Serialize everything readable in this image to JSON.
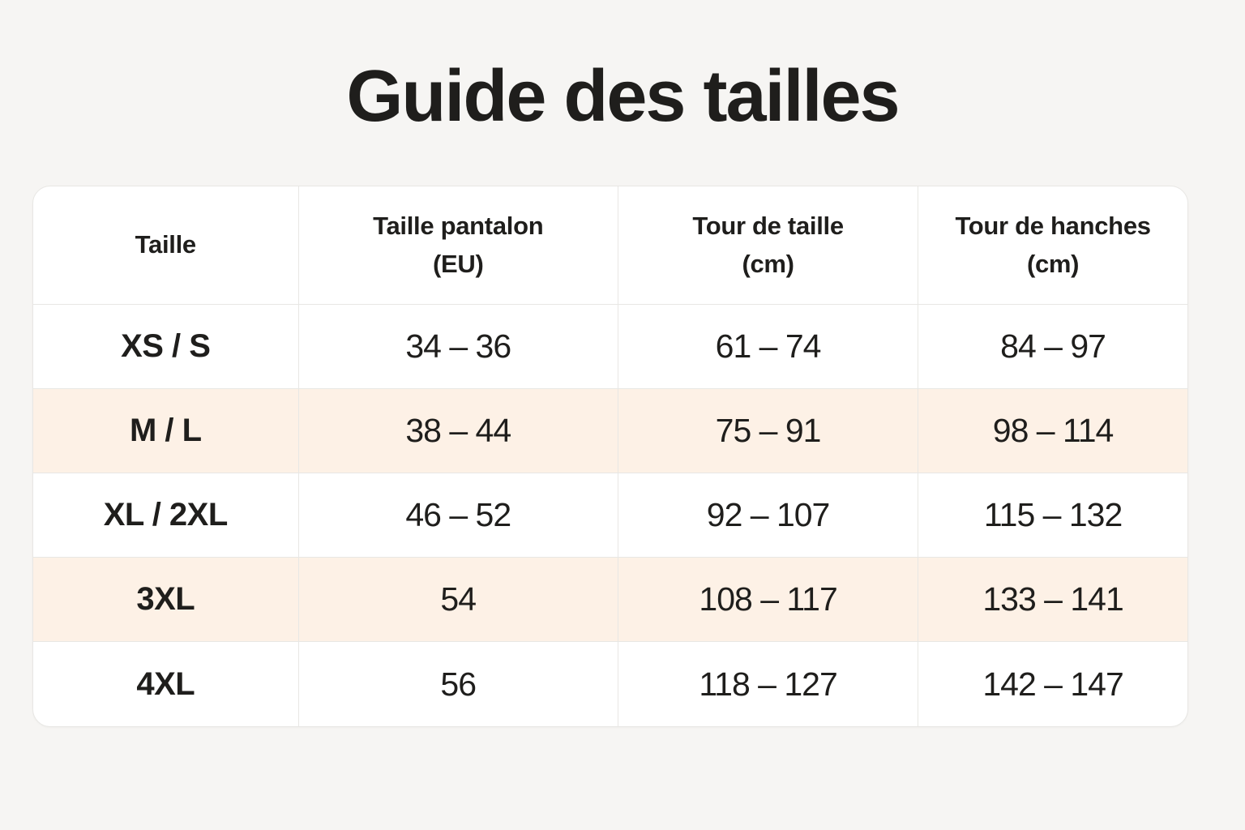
{
  "page": {
    "title": "Guide des tailles"
  },
  "colors": {
    "page_background": "#f6f5f3",
    "table_background": "#ffffff",
    "stripe_row_background": "#fdf1e6",
    "grid_line": "#e8e7e4",
    "text": "#1f1e1c"
  },
  "header_display": [
    "Taille",
    "Taille pantalon\n(EU)",
    "Tour de taille\n(cm)",
    "Tour de hanches\n(cm)"
  ],
  "chart_data": {
    "type": "table",
    "title": "Guide des tailles",
    "columns": [
      "Taille",
      "Taille pantalon (EU)",
      "Tour de taille (cm)",
      "Tour de hanches (cm)"
    ],
    "rows": [
      [
        "XS / S",
        "34 – 36",
        "61 – 74",
        "84 – 97"
      ],
      [
        "M / L",
        "38 – 44",
        "75 – 91",
        "98 – 114"
      ],
      [
        "XL / 2XL",
        "46 – 52",
        "92 – 107",
        "115 – 132"
      ],
      [
        "3XL",
        "54",
        "108 – 117",
        "133 – 141"
      ],
      [
        "4XL",
        "56",
        "118 – 127",
        "142 – 147"
      ]
    ],
    "striped_row_indices": [
      1,
      3
    ],
    "grid": true,
    "legend_position": "none"
  }
}
